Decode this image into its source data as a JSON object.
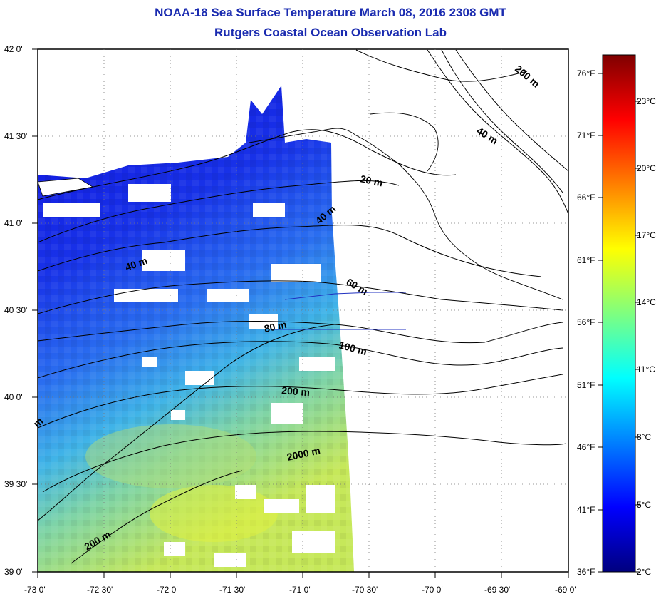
{
  "title": "NOAA-18 Sea Surface Temperature March 08, 2016 2308 GMT",
  "subtitle": "Rutgers Coastal Ocean Observation Lab",
  "map": {
    "lat_labels": [
      "42 0'",
      "41 30'",
      "41 0'",
      "40 30'",
      "40 0'",
      "39 30'",
      "39 0'"
    ],
    "lon_labels": [
      "-73 0'",
      "-72 30'",
      "-72 0'",
      "-71 30'",
      "-71 0'",
      "-70 30'",
      "-70 0'",
      "-69 30'",
      "-69 0'"
    ],
    "contour_labels": [
      "200 m",
      "40 m",
      "20 m",
      "40 m",
      "40 m",
      "60 m",
      "80 m",
      "100 m",
      "200 m",
      "2000 m",
      "200 m",
      "m"
    ],
    "land_color": "#ffffff",
    "contour_color": "#000000"
  },
  "colorbar": {
    "fahrenheit_labels": [
      "76°F",
      "71°F",
      "66°F",
      "61°F",
      "56°F",
      "51°F",
      "46°F",
      "41°F",
      "36°F"
    ],
    "celsius_labels": [
      "23°C",
      "20°C",
      "17°C",
      "14°C",
      "11°C",
      "8°C",
      "5°C",
      "2°C"
    ],
    "range_celsius": [
      2,
      25
    ],
    "colors": [
      "#00007f",
      "#0000ff",
      "#007fff",
      "#00ffff",
      "#7fff7f",
      "#ffff00",
      "#ff7f00",
      "#ff0000",
      "#7f0000"
    ]
  }
}
